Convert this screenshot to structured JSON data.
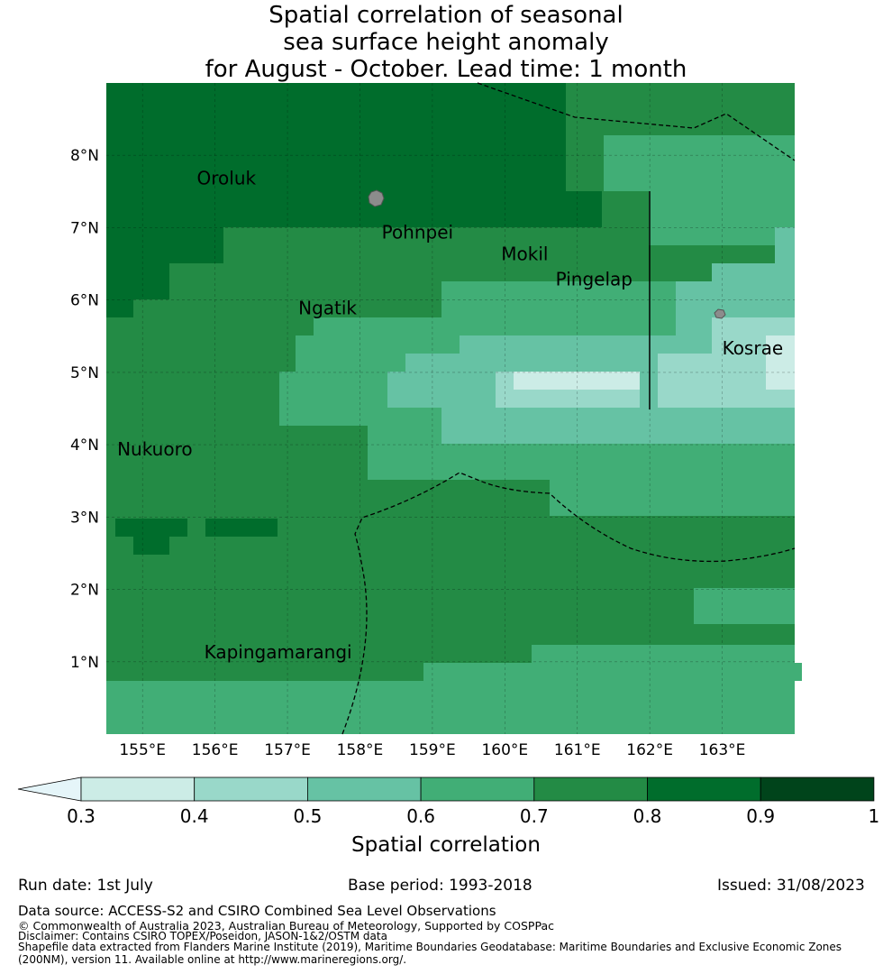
{
  "title": {
    "line1": "Spatial correlation of seasonal",
    "line2": "sea surface height anomaly",
    "line3": "for August - October. Lead time: 1 month"
  },
  "map": {
    "x_ticks": [
      "155°E",
      "156°E",
      "157°E",
      "158°E",
      "159°E",
      "160°E",
      "161°E",
      "162°E",
      "163°E"
    ],
    "y_ticks": [
      "8°N",
      "7°N",
      "6°N",
      "5°N",
      "4°N",
      "3°N",
      "2°N",
      "1°N"
    ],
    "x_range": [
      154.5,
      164.0
    ],
    "y_range": [
      0.0,
      9.0
    ],
    "places": [
      {
        "name": "Oroluk",
        "lon": 155.75,
        "lat": 7.6
      },
      {
        "name": "Pohnpei",
        "lon": 158.3,
        "lat": 6.85
      },
      {
        "name": "Mokil",
        "lon": 159.95,
        "lat": 6.55
      },
      {
        "name": "Pingelap",
        "lon": 160.7,
        "lat": 6.2
      },
      {
        "name": "Ngatik",
        "lon": 157.15,
        "lat": 5.8
      },
      {
        "name": "Kosrae",
        "lon": 163.0,
        "lat": 5.25
      },
      {
        "name": "Nukuoro",
        "lon": 154.65,
        "lat": 3.85
      },
      {
        "name": "Kapingamarangi",
        "lon": 155.85,
        "lat": 1.05
      }
    ],
    "colors": {
      "0.3-0.4": "#ccece6",
      "0.4-0.5": "#99d8c9",
      "0.5-0.6": "#66c2a4",
      "0.6-0.7": "#41ae76",
      "0.7-0.8": "#238b45",
      "0.8-0.9": "#006d2c",
      "0.9-1": "#00441b",
      "below": "#e5f5f9"
    }
  },
  "colorbar": {
    "ticks": [
      "0.3",
      "0.4",
      "0.5",
      "0.6",
      "0.7",
      "0.8",
      "0.9",
      "1"
    ],
    "label": "Spatial correlation"
  },
  "footer": {
    "run_date": "Run date: 1st July",
    "base_period": "Base period: 1993-2018",
    "issued": "Issued: 31/08/2023",
    "data_source": "Data source: ACCESS-S2 and CSIRO Combined Sea Level Observations",
    "copyright": "© Commonwealth of Australia 2023, Australian Bureau of Meteorology, Supported by COSPPac",
    "disclaimer": "Disclaimer: Contains CSIRO TOPEX/Poseidon, JASON-1&2/OSTM data",
    "shapefile1": "Shapefile data extracted from Flanders Marine Institute (2019), Maritime Boundaries Geodatabase: Maritime Boundaries and Exclusive Economic Zones",
    "shapefile2": "(200NM), version 11. Available online at http://www.marineregions.org/."
  }
}
